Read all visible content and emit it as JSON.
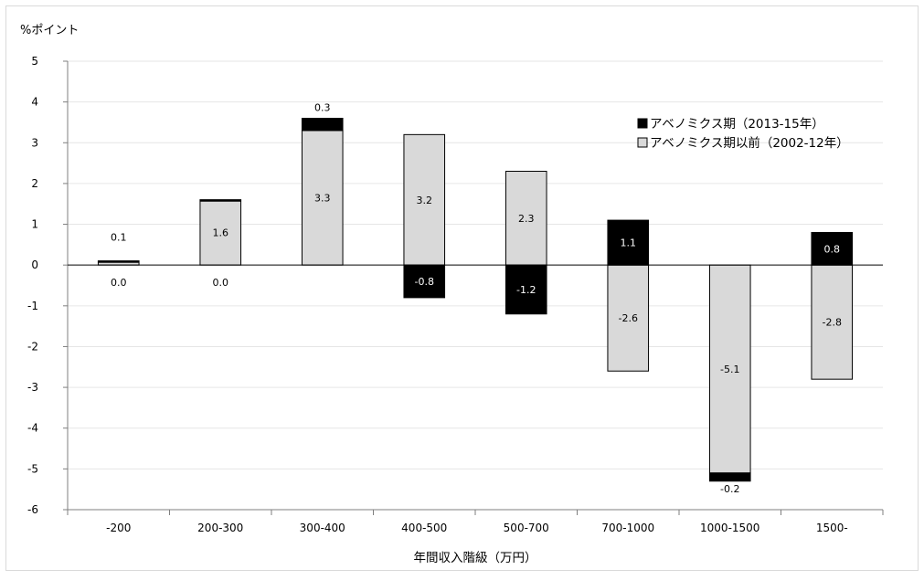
{
  "chart_data": {
    "type": "bar",
    "stacked": true,
    "title": "",
    "ylabel": "%ポイント",
    "xlabel": "年間収入階級（万円）",
    "ylim": [
      -6,
      5
    ],
    "yticks": [
      5,
      4,
      3,
      2,
      1,
      0,
      -1,
      -2,
      -3,
      -4,
      -5,
      -6
    ],
    "grid": true,
    "legend_position": "top-right",
    "categories": [
      "-200",
      "200-300",
      "300-400",
      "400-500",
      "500-700",
      "700-1000",
      "1000-1500",
      "1500-"
    ],
    "series": [
      {
        "name": "アベノミクス期以前（2002-12年）",
        "color": "#d9d9d9",
        "values": [
          0.1,
          1.6,
          3.3,
          3.2,
          2.3,
          -2.6,
          -5.1,
          -2.8
        ],
        "labels": [
          "0.1",
          "1.6",
          "3.3",
          "3.2",
          "2.3",
          "-2.6",
          "-5.1",
          "-2.8"
        ]
      },
      {
        "name": "アベノミクス期（2013-15年）",
        "color": "#000000",
        "values": [
          0.0,
          0.0,
          0.3,
          -0.8,
          -1.2,
          1.1,
          -0.2,
          0.8
        ],
        "labels": [
          "0.0",
          "0.0",
          "0.3",
          "-0.8",
          "-1.2",
          "1.1",
          "-0.2",
          "0.8"
        ]
      }
    ]
  }
}
